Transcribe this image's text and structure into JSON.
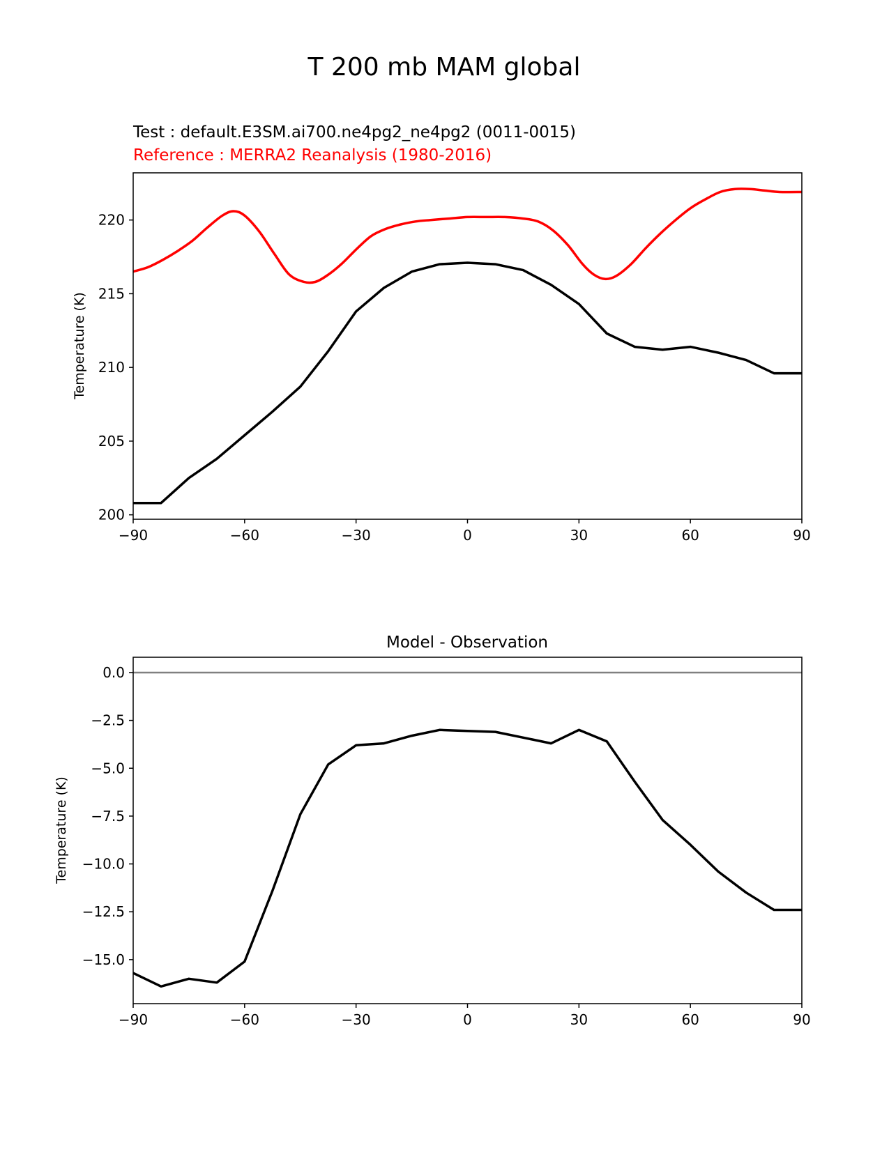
{
  "suptitle": "T 200 mb MAM global",
  "chart_data": [
    {
      "type": "line",
      "test_label": "Test : default.E3SM.ai700.ne4pg2_ne4pg2 (0011-0015)",
      "ref_label": "Reference : MERRA2 Reanalysis (1980-2016)",
      "title": "",
      "xlabel": "",
      "ylabel": "Temperature (K)",
      "xlim": [
        -90,
        90
      ],
      "ylim": [
        199.7,
        223.2
      ],
      "xticks": [
        -90,
        -60,
        -30,
        0,
        30,
        60,
        90
      ],
      "xtick_labels": [
        "−90",
        "−60",
        "−30",
        "0",
        "30",
        "60",
        "90"
      ],
      "yticks": [
        200,
        205,
        210,
        215,
        220
      ],
      "ytick_labels": [
        "200",
        "205",
        "210",
        "215",
        "220"
      ],
      "grid": false,
      "series": [
        {
          "name": "Reference : MERRA2 Reanalysis (1980-2016)",
          "color": "#ff0000",
          "smooth": true,
          "x": [
            -90,
            -86,
            -82,
            -78,
            -74,
            -70,
            -66,
            -63,
            -60,
            -56,
            -52,
            -48,
            -44,
            -41,
            -38,
            -34,
            -30,
            -26,
            -22,
            -18,
            -14,
            -10,
            -5,
            0,
            5,
            10,
            15,
            19,
            23,
            27,
            31,
            34,
            37,
            40,
            44,
            48,
            52,
            56,
            60,
            64,
            68,
            72,
            76,
            80,
            84,
            90
          ],
          "y": [
            216.5,
            216.8,
            217.3,
            217.9,
            218.6,
            219.5,
            220.3,
            220.6,
            220.3,
            219.2,
            217.7,
            216.3,
            215.8,
            215.8,
            216.2,
            217.0,
            218.0,
            218.9,
            219.4,
            219.7,
            219.9,
            220.0,
            220.1,
            220.2,
            220.2,
            220.2,
            220.1,
            219.9,
            219.3,
            218.3,
            217.0,
            216.3,
            216.0,
            216.2,
            217.0,
            218.1,
            219.1,
            220.0,
            220.8,
            221.4,
            221.9,
            222.1,
            222.1,
            222.0,
            221.9,
            221.9
          ]
        },
        {
          "name": "Test : default.E3SM.ai700.ne4pg2_ne4pg2 (0011-0015)",
          "color": "#000000",
          "smooth": false,
          "x": [
            -90,
            -82.5,
            -75,
            -67.5,
            -60,
            -52.5,
            -45,
            -37.5,
            -30,
            -22.5,
            -15,
            -7.5,
            0,
            7.5,
            15,
            22.5,
            30,
            37.5,
            45,
            52.5,
            60,
            67.5,
            75,
            82.5,
            90
          ],
          "y": [
            200.8,
            200.8,
            202.5,
            203.8,
            205.4,
            207.0,
            208.7,
            211.1,
            213.8,
            215.4,
            216.5,
            217.0,
            217.1,
            217.0,
            216.6,
            215.6,
            214.3,
            212.3,
            211.4,
            211.2,
            211.4,
            211.0,
            210.5,
            209.6,
            209.6
          ]
        }
      ]
    },
    {
      "type": "line",
      "title": "Model - Observation",
      "xlabel": "",
      "ylabel": "Temperature (K)",
      "xlim": [
        -90,
        90
      ],
      "ylim": [
        -17.3,
        0.8
      ],
      "xticks": [
        -90,
        -60,
        -30,
        0,
        30,
        60,
        90
      ],
      "xtick_labels": [
        "−90",
        "−60",
        "−30",
        "0",
        "30",
        "60",
        "90"
      ],
      "yticks": [
        0,
        -2.5,
        -5,
        -7.5,
        -10,
        -12.5,
        -15
      ],
      "ytick_labels": [
        "0.0",
        "−2.5",
        "−5.0",
        "−7.5",
        "−10.0",
        "−12.5",
        "−15.0"
      ],
      "grid": false,
      "zero_line": {
        "y": 0,
        "color": "#808080"
      },
      "series": [
        {
          "name": "Model - Observation",
          "color": "#000000",
          "smooth": false,
          "x": [
            -90,
            -82.5,
            -75,
            -67.5,
            -60,
            -52.5,
            -45,
            -37.5,
            -30,
            -22.5,
            -15,
            -7.5,
            0,
            7.5,
            15,
            22.5,
            30,
            37.5,
            45,
            52.5,
            60,
            67.5,
            75,
            82.5,
            90
          ],
          "y": [
            -15.7,
            -16.4,
            -16.0,
            -16.2,
            -15.1,
            -11.4,
            -7.4,
            -4.8,
            -3.8,
            -3.7,
            -3.3,
            -3.0,
            -3.05,
            -3.1,
            -3.4,
            -3.7,
            -3.0,
            -3.6,
            -5.7,
            -7.7,
            -9.0,
            -10.4,
            -11.5,
            -12.4,
            -12.4
          ]
        }
      ]
    }
  ]
}
